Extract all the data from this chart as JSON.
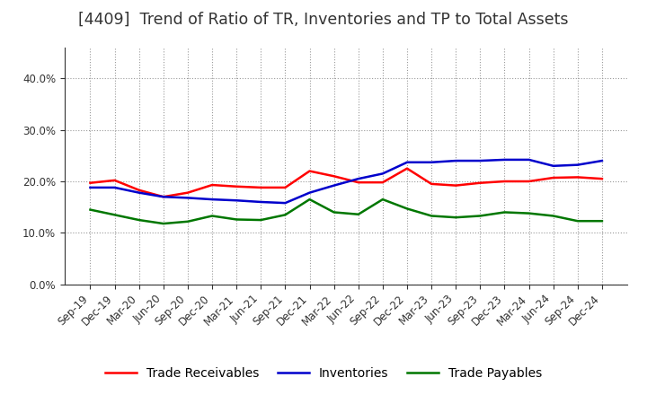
{
  "title": "[4409]  Trend of Ratio of TR, Inventories and TP to Total Assets",
  "x_labels": [
    "Sep-19",
    "Dec-19",
    "Mar-20",
    "Jun-20",
    "Sep-20",
    "Dec-20",
    "Mar-21",
    "Jun-21",
    "Sep-21",
    "Dec-21",
    "Mar-22",
    "Jun-22",
    "Sep-22",
    "Dec-22",
    "Mar-23",
    "Jun-23",
    "Sep-23",
    "Dec-23",
    "Mar-24",
    "Jun-24",
    "Sep-24",
    "Dec-24"
  ],
  "trade_receivables": [
    0.197,
    0.202,
    0.183,
    0.17,
    0.178,
    0.193,
    0.19,
    0.188,
    0.188,
    0.22,
    0.21,
    0.198,
    0.198,
    0.225,
    0.195,
    0.192,
    0.197,
    0.2,
    0.2,
    0.207,
    0.208,
    0.205
  ],
  "inventories": [
    0.188,
    0.188,
    0.178,
    0.17,
    0.168,
    0.165,
    0.163,
    0.16,
    0.158,
    0.178,
    0.192,
    0.205,
    0.215,
    0.237,
    0.237,
    0.24,
    0.24,
    0.242,
    0.242,
    0.23,
    0.232,
    0.24
  ],
  "trade_payables": [
    0.145,
    0.135,
    0.125,
    0.118,
    0.122,
    0.133,
    0.126,
    0.125,
    0.135,
    0.165,
    0.14,
    0.136,
    0.165,
    0.147,
    0.133,
    0.13,
    0.133,
    0.14,
    0.138,
    0.133,
    0.123,
    0.123
  ],
  "tr_color": "#ff0000",
  "inv_color": "#0000cc",
  "tp_color": "#007700",
  "ylim": [
    0.0,
    0.46
  ],
  "yticks": [
    0.0,
    0.1,
    0.2,
    0.3,
    0.4
  ],
  "background_color": "#ffffff",
  "grid_color": "#999999",
  "title_fontsize": 12.5,
  "legend_fontsize": 10,
  "tick_fontsize": 8.5,
  "title_color": "#333333"
}
